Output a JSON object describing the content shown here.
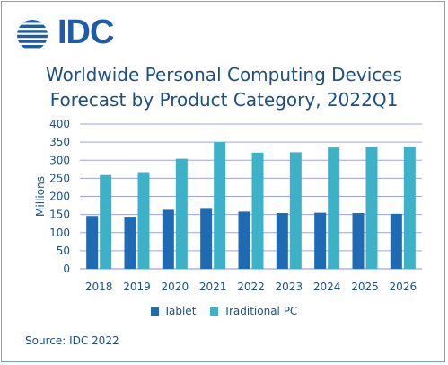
{
  "brand": {
    "logo_text": "IDC",
    "logo_color": "#1f5ba6"
  },
  "title_lines": [
    "Worldwide Personal Computing Devices",
    "Forecast by Product Category, 2022Q1"
  ],
  "source": "Source: IDC 2022",
  "chart_data": {
    "type": "bar",
    "title": "Worldwide Personal Computing Devices Forecast by Product Category, 2022Q1",
    "xlabel": "",
    "ylabel": "Millions",
    "ylim": [
      0,
      400
    ],
    "yticks": [
      0,
      50,
      100,
      150,
      200,
      250,
      300,
      350,
      400
    ],
    "grid": true,
    "legend_position": "bottom",
    "categories": [
      "2018",
      "2019",
      "2020",
      "2021",
      "2022",
      "2023",
      "2024",
      "2025",
      "2026"
    ],
    "series": [
      {
        "name": "Tablet",
        "color": "#1f6bb3",
        "values": [
          146,
          144,
          163,
          168,
          158,
          154,
          155,
          154,
          152
        ]
      },
      {
        "name": "Traditional PC",
        "color": "#3cb1c7",
        "values": [
          259,
          267,
          304,
          350,
          321,
          322,
          335,
          338,
          338
        ]
      }
    ]
  }
}
